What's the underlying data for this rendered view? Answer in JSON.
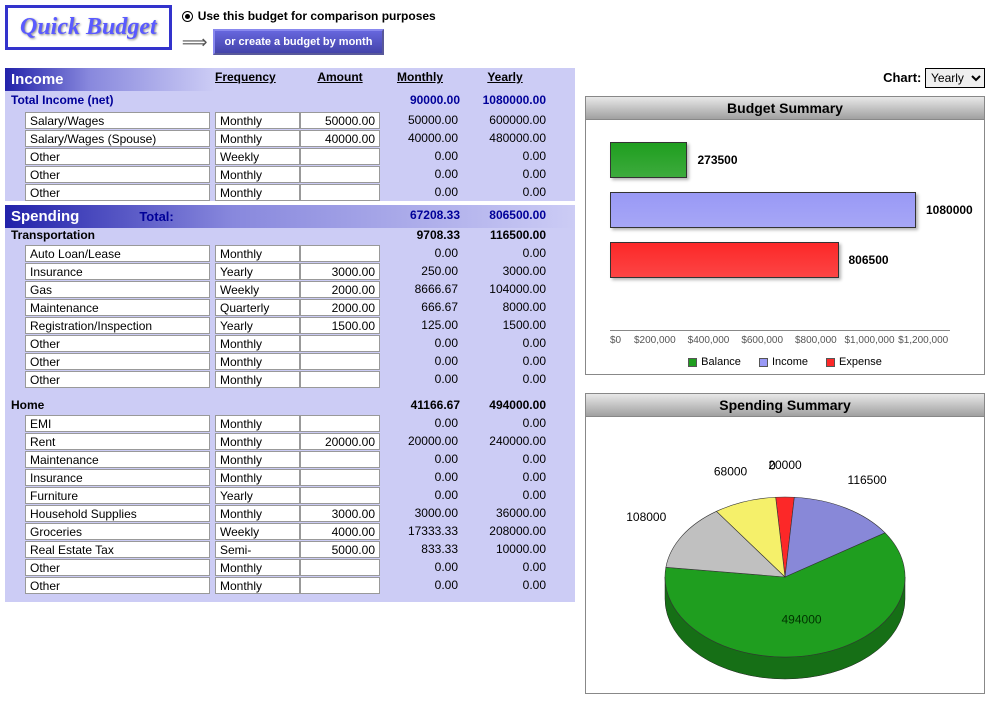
{
  "app": {
    "logo": "Quick Budget",
    "radio_label": "Use this budget for comparison purposes",
    "create_btn": "or create a budget by month",
    "chart_label": "Chart:",
    "chart_select_value": "Yearly"
  },
  "columns": [
    "",
    "Frequency",
    "Amount",
    "Monthly",
    "Yearly"
  ],
  "income": {
    "title": "Income",
    "total_label": "Total Income (net)",
    "total_monthly": "90000.00",
    "total_yearly": "1080000.00",
    "rows": [
      {
        "label": "Salary/Wages",
        "freq": "Monthly",
        "amount": "50000.00",
        "monthly": "50000.00",
        "yearly": "600000.00"
      },
      {
        "label": "Salary/Wages (Spouse)",
        "freq": "Monthly",
        "amount": "40000.00",
        "monthly": "40000.00",
        "yearly": "480000.00"
      },
      {
        "label": "Other",
        "freq": "Weekly",
        "amount": "",
        "monthly": "0.00",
        "yearly": "0.00"
      },
      {
        "label": "Other",
        "freq": "Monthly",
        "amount": "",
        "monthly": "0.00",
        "yearly": "0.00"
      },
      {
        "label": "Other",
        "freq": "Monthly",
        "amount": "",
        "monthly": "0.00",
        "yearly": "0.00"
      }
    ]
  },
  "spending": {
    "title": "Spending",
    "total_label": "Total:",
    "total_monthly": "67208.33",
    "total_yearly": "806500.00",
    "categories": [
      {
        "name": "Transportation",
        "monthly": "9708.33",
        "yearly": "116500.00",
        "rows": [
          {
            "label": "Auto Loan/Lease",
            "freq": "Monthly",
            "amount": "",
            "monthly": "0.00",
            "yearly": "0.00"
          },
          {
            "label": "Insurance",
            "freq": "Yearly",
            "amount": "3000.00",
            "monthly": "250.00",
            "yearly": "3000.00"
          },
          {
            "label": "Gas",
            "freq": "Weekly",
            "amount": "2000.00",
            "monthly": "8666.67",
            "yearly": "104000.00"
          },
          {
            "label": "Maintenance",
            "freq": "Quarterly",
            "amount": "2000.00",
            "monthly": "666.67",
            "yearly": "8000.00"
          },
          {
            "label": "Registration/Inspection",
            "freq": "Yearly",
            "amount": "1500.00",
            "monthly": "125.00",
            "yearly": "1500.00"
          },
          {
            "label": "Other",
            "freq": "Monthly",
            "amount": "",
            "monthly": "0.00",
            "yearly": "0.00"
          },
          {
            "label": "Other",
            "freq": "Monthly",
            "amount": "",
            "monthly": "0.00",
            "yearly": "0.00"
          },
          {
            "label": "Other",
            "freq": "Monthly",
            "amount": "",
            "monthly": "0.00",
            "yearly": "0.00"
          }
        ]
      },
      {
        "name": "Home",
        "monthly": "41166.67",
        "yearly": "494000.00",
        "rows": [
          {
            "label": "EMI",
            "freq": "Monthly",
            "amount": "",
            "monthly": "0.00",
            "yearly": "0.00"
          },
          {
            "label": "Rent",
            "freq": "Monthly",
            "amount": "20000.00",
            "monthly": "20000.00",
            "yearly": "240000.00"
          },
          {
            "label": "Maintenance",
            "freq": "Monthly",
            "amount": "",
            "monthly": "0.00",
            "yearly": "0.00"
          },
          {
            "label": "Insurance",
            "freq": "Monthly",
            "amount": "",
            "monthly": "0.00",
            "yearly": "0.00"
          },
          {
            "label": "Furniture",
            "freq": "Yearly",
            "amount": "",
            "monthly": "0.00",
            "yearly": "0.00"
          },
          {
            "label": "Household Supplies",
            "freq": "Monthly",
            "amount": "3000.00",
            "monthly": "3000.00",
            "yearly": "36000.00"
          },
          {
            "label": "Groceries",
            "freq": "Weekly",
            "amount": "4000.00",
            "monthly": "17333.33",
            "yearly": "208000.00"
          },
          {
            "label": "Real Estate Tax",
            "freq": "Semi-Annually",
            "amount": "5000.00",
            "monthly": "833.33",
            "yearly": "10000.00"
          },
          {
            "label": "Other",
            "freq": "Monthly",
            "amount": "",
            "monthly": "0.00",
            "yearly": "0.00"
          },
          {
            "label": "Other",
            "freq": "Monthly",
            "amount": "",
            "monthly": "0.00",
            "yearly": "0.00"
          }
        ]
      }
    ]
  },
  "budget_chart": {
    "title": "Budget Summary",
    "type": "horizontal-bar",
    "max": 1200000,
    "bars": [
      {
        "label": "273500",
        "value": 273500,
        "color": "#1f9e1f",
        "series": "Balance"
      },
      {
        "label": "1080000",
        "value": 1080000,
        "color": "#9999f5",
        "series": "Income"
      },
      {
        "label": "806500",
        "value": 806500,
        "color": "#fc2828",
        "series": "Expense"
      }
    ],
    "axis_ticks": [
      "$0",
      "$200,000",
      "$400,000",
      "$600,000",
      "$800,000",
      "$1,000,000",
      "$1,200,000"
    ],
    "legend": [
      {
        "label": "Balance",
        "color": "#1f9e1f"
      },
      {
        "label": "Income",
        "color": "#9999f5"
      },
      {
        "label": "Expense",
        "color": "#fc2828"
      }
    ]
  },
  "spending_chart": {
    "title": "Spending Summary",
    "type": "pie",
    "slices": [
      {
        "label": "116500",
        "value": 116500,
        "color": "#8888d8"
      },
      {
        "label": "494000",
        "value": 494000,
        "color": "#1f9e1f"
      },
      {
        "label": "108000",
        "value": 108000,
        "color": "#c0c0c0"
      },
      {
        "label": "68000",
        "value": 68000,
        "color": "#f5f06a"
      },
      {
        "label": "0",
        "value": 0,
        "color": "#888888"
      },
      {
        "label": "20000",
        "value": 20000,
        "color": "#fc2828"
      }
    ]
  }
}
